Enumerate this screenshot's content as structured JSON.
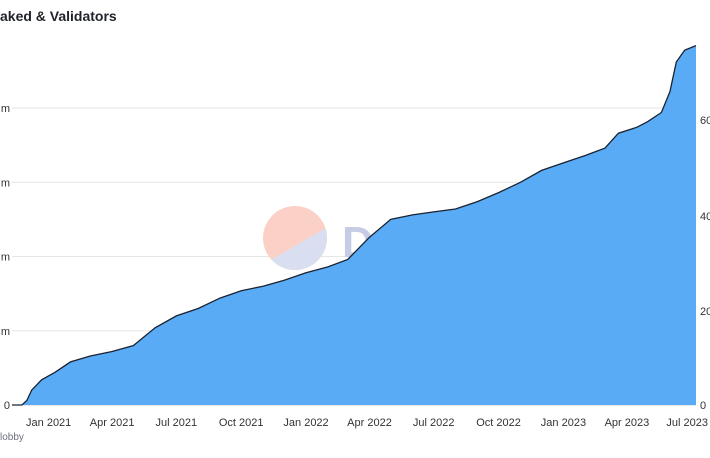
{
  "header": {
    "title": "aked & Validators"
  },
  "footer": {
    "author": "lobby"
  },
  "watermark": {
    "text": "Dune",
    "logo_color_top": "#fbd1c7",
    "logo_color_bottom": "#d9dff1",
    "text_color": "#c7cce6"
  },
  "chart_data": {
    "type": "area",
    "title": "aked & Validators",
    "xlabel": "",
    "ylabel": "",
    "grid": true,
    "x_tick_labels": [
      "Jan 2021",
      "Apr 2021",
      "Jul 2021",
      "Oct 2021",
      "Jan 2022",
      "Apr 2022",
      "Jul 2022",
      "Oct 2022",
      "Jan 2023",
      "Apr 2023",
      "Jul 2023"
    ],
    "y_left_tick_labels": [
      "0",
      "m",
      "m",
      "m",
      "m"
    ],
    "y_right_tick_labels": [
      "0",
      "20",
      "40",
      "60"
    ],
    "xlim": [
      "2020-11-10",
      "2023-07-08"
    ],
    "ylim": [
      0,
      20
    ],
    "series": [
      {
        "name": "",
        "color": "#59abf6",
        "line_color": "#1a2230",
        "points": [
          [
            "2020-11-10",
            0
          ],
          [
            "2020-11-24",
            0
          ],
          [
            "2020-12-01",
            0.3
          ],
          [
            "2020-12-08",
            1.0
          ],
          [
            "2020-12-22",
            1.7
          ],
          [
            "2021-01-10",
            2.2
          ],
          [
            "2021-02-01",
            2.9
          ],
          [
            "2021-03-01",
            3.3
          ],
          [
            "2021-04-01",
            3.6
          ],
          [
            "2021-05-01",
            4.0
          ],
          [
            "2021-06-01",
            5.2
          ],
          [
            "2021-07-01",
            6.0
          ],
          [
            "2021-08-01",
            6.5
          ],
          [
            "2021-09-01",
            7.2
          ],
          [
            "2021-10-01",
            7.7
          ],
          [
            "2021-11-01",
            8.0
          ],
          [
            "2021-12-01",
            8.4
          ],
          [
            "2022-01-01",
            8.9
          ],
          [
            "2022-02-01",
            9.3
          ],
          [
            "2022-03-01",
            9.8
          ],
          [
            "2022-04-01",
            11.3
          ],
          [
            "2022-05-01",
            12.5
          ],
          [
            "2022-06-01",
            12.8
          ],
          [
            "2022-07-01",
            13.0
          ],
          [
            "2022-08-01",
            13.2
          ],
          [
            "2022-09-01",
            13.7
          ],
          [
            "2022-10-01",
            14.3
          ],
          [
            "2022-11-01",
            15.0
          ],
          [
            "2022-12-01",
            15.8
          ],
          [
            "2023-01-01",
            16.3
          ],
          [
            "2023-02-01",
            16.8
          ],
          [
            "2023-03-01",
            17.3
          ],
          [
            "2023-03-20",
            18.3
          ],
          [
            "2023-04-15",
            18.7
          ],
          [
            "2023-05-01",
            19.1
          ],
          [
            "2023-05-20",
            19.7
          ],
          [
            "2023-06-01",
            21.1
          ],
          [
            "2023-06-10",
            23.1
          ],
          [
            "2023-06-22",
            23.9
          ],
          [
            "2023-07-08",
            24.2
          ]
        ]
      }
    ]
  }
}
